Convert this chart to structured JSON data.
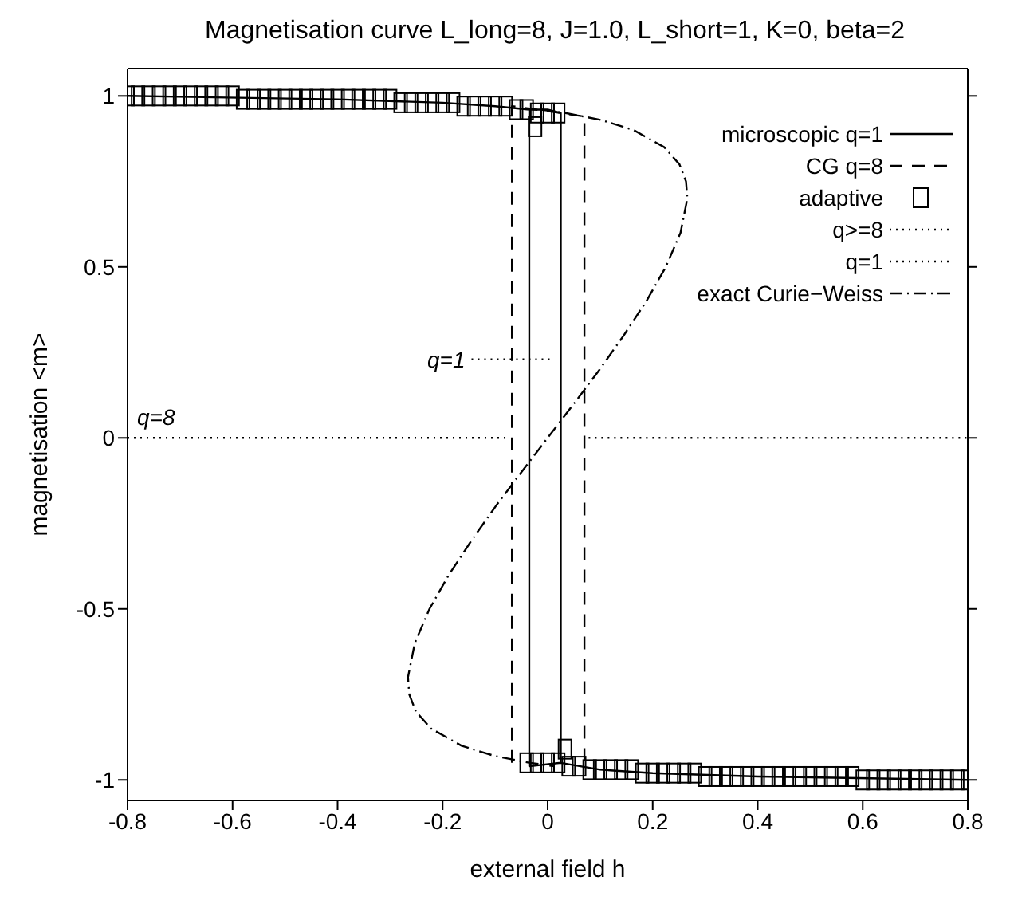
{
  "chart_data": {
    "type": "line",
    "title": "Magnetisation curve  L_long=8, J=1.0, L_short=1, K=0, beta=2",
    "xlabel": "external field h",
    "ylabel": "magnetisation <m>",
    "xlim": [
      -0.8,
      0.8
    ],
    "xticks": [
      -0.8,
      -0.6,
      -0.4,
      -0.2,
      0,
      0.2,
      0.4,
      0.6,
      0.8
    ],
    "ylim": [
      -1.06,
      1.08
    ],
    "yticks": [
      -1,
      -0.5,
      0,
      0.5,
      1
    ],
    "grid": false,
    "legend": "top right",
    "annotations": [
      {
        "text": "q=8",
        "x": -0.8,
        "y": 0
      },
      {
        "text": "q=1",
        "x": -0.145,
        "y": 0.23
      }
    ],
    "series": [
      {
        "name": "microscopic q=1",
        "line_style": "solid",
        "color": "#000000",
        "x": [
          -0.8,
          -0.4,
          -0.2,
          -0.1,
          -0.035,
          -0.035,
          0.025,
          0.1,
          0.2,
          0.4,
          0.8,
          0.4,
          0.2,
          0.1,
          0.025,
          0.025,
          0,
          -0.035
        ],
        "values": [
          1.0,
          0.99,
          0.98,
          0.97,
          0.96,
          -0.96,
          -0.95,
          -0.97,
          -0.98,
          -0.99,
          -1.0,
          -0.99,
          -0.98,
          -0.97,
          -0.95,
          0.95,
          0.96,
          0.96
        ]
      },
      {
        "name": "CG q=8",
        "line_style": "dashed",
        "color": "#000000",
        "x": [
          -0.068,
          -0.068,
          0.07,
          0.07
        ],
        "values": [
          -0.95,
          0.97,
          0.94,
          -0.96
        ]
      },
      {
        "name": "adaptive",
        "type": "scatter",
        "marker": "square",
        "color": "#000000",
        "x": [
          -0.8,
          -0.78,
          -0.76,
          -0.74,
          -0.72,
          -0.7,
          -0.68,
          -0.66,
          -0.64,
          -0.62,
          -0.6,
          -0.58,
          -0.56,
          -0.54,
          -0.52,
          -0.5,
          -0.48,
          -0.46,
          -0.44,
          -0.42,
          -0.4,
          -0.38,
          -0.36,
          -0.34,
          -0.32,
          -0.3,
          -0.28,
          -0.26,
          -0.24,
          -0.22,
          -0.2,
          -0.18,
          -0.16,
          -0.14,
          -0.12,
          -0.1,
          -0.08,
          -0.06,
          -0.04,
          -0.02,
          0,
          0.02,
          -0.024,
          0.033,
          -0.04,
          -0.02,
          0,
          0.02,
          0.04,
          0.06,
          0.08,
          0.1,
          0.12,
          0.14,
          0.16,
          0.18,
          0.2,
          0.22,
          0.24,
          0.26,
          0.28,
          0.3,
          0.32,
          0.34,
          0.36,
          0.38,
          0.4,
          0.42,
          0.44,
          0.46,
          0.48,
          0.5,
          0.52,
          0.54,
          0.56,
          0.58,
          0.6,
          0.62,
          0.64,
          0.66,
          0.68,
          0.7,
          0.72,
          0.74,
          0.76,
          0.78,
          0.8
        ],
        "values": [
          1.0,
          1.0,
          1.0,
          1.0,
          1.0,
          1.0,
          1.0,
          1.0,
          1.0,
          1.0,
          1.0,
          0.99,
          0.99,
          0.99,
          0.99,
          0.99,
          0.99,
          0.99,
          0.99,
          0.99,
          0.99,
          0.99,
          0.99,
          0.99,
          0.99,
          0.99,
          0.98,
          0.98,
          0.98,
          0.98,
          0.98,
          0.98,
          0.97,
          0.97,
          0.97,
          0.97,
          0.97,
          0.96,
          0.96,
          0.95,
          0.95,
          0.95,
          0.91,
          -0.91,
          -0.95,
          -0.95,
          -0.95,
          -0.95,
          -0.96,
          -0.96,
          -0.97,
          -0.97,
          -0.97,
          -0.97,
          -0.97,
          -0.98,
          -0.98,
          -0.98,
          -0.98,
          -0.98,
          -0.98,
          -0.99,
          -0.99,
          -0.99,
          -0.99,
          -0.99,
          -0.99,
          -0.99,
          -0.99,
          -0.99,
          -0.99,
          -0.99,
          -0.99,
          -0.99,
          -0.99,
          -0.99,
          -1.0,
          -1.0,
          -1.0,
          -1.0,
          -1.0,
          -1.0,
          -1.0,
          -1.0,
          -1.0,
          -1.0,
          -1.0
        ]
      },
      {
        "name": "q>=8",
        "line_style": "dotted",
        "color": "#000000",
        "x": [
          -0.8,
          -0.075
        ],
        "values": [
          0,
          0
        ]
      },
      {
        "name": "q=1",
        "line_style": "dotted",
        "color": "#000000",
        "x": [
          -0.145,
          0.005
        ],
        "values": [
          0.23,
          0.23
        ]
      },
      {
        "name": "exact Curie−Weiss",
        "line_style": "dashdot",
        "color": "#000000",
        "x": [
          -0.013,
          0.034,
          0.101,
          0.164,
          0.222,
          0.251,
          0.2635,
          0.266,
          0.253,
          0.225,
          0.188,
          0.145,
          0.099,
          0.05,
          0,
          -0.05,
          -0.099,
          -0.145,
          -0.188,
          -0.225,
          -0.253,
          -0.266,
          -0.2635,
          -0.251,
          -0.222,
          -0.164,
          -0.101,
          -0.034,
          0.013
        ],
        "values": [
          0.96,
          0.95,
          0.93,
          0.9,
          0.85,
          0.8,
          0.75,
          0.7,
          0.6,
          0.5,
          0.4,
          0.3,
          0.2,
          0.1,
          0,
          -0.1,
          -0.2,
          -0.3,
          -0.4,
          -0.5,
          -0.6,
          -0.7,
          -0.75,
          -0.8,
          -0.85,
          -0.9,
          -0.93,
          -0.95,
          -0.96
        ]
      },
      {
        "line_style": "dotted",
        "color": "#000000",
        "x": [
          0.078,
          0.8
        ],
        "values": [
          0,
          0
        ]
      }
    ]
  }
}
